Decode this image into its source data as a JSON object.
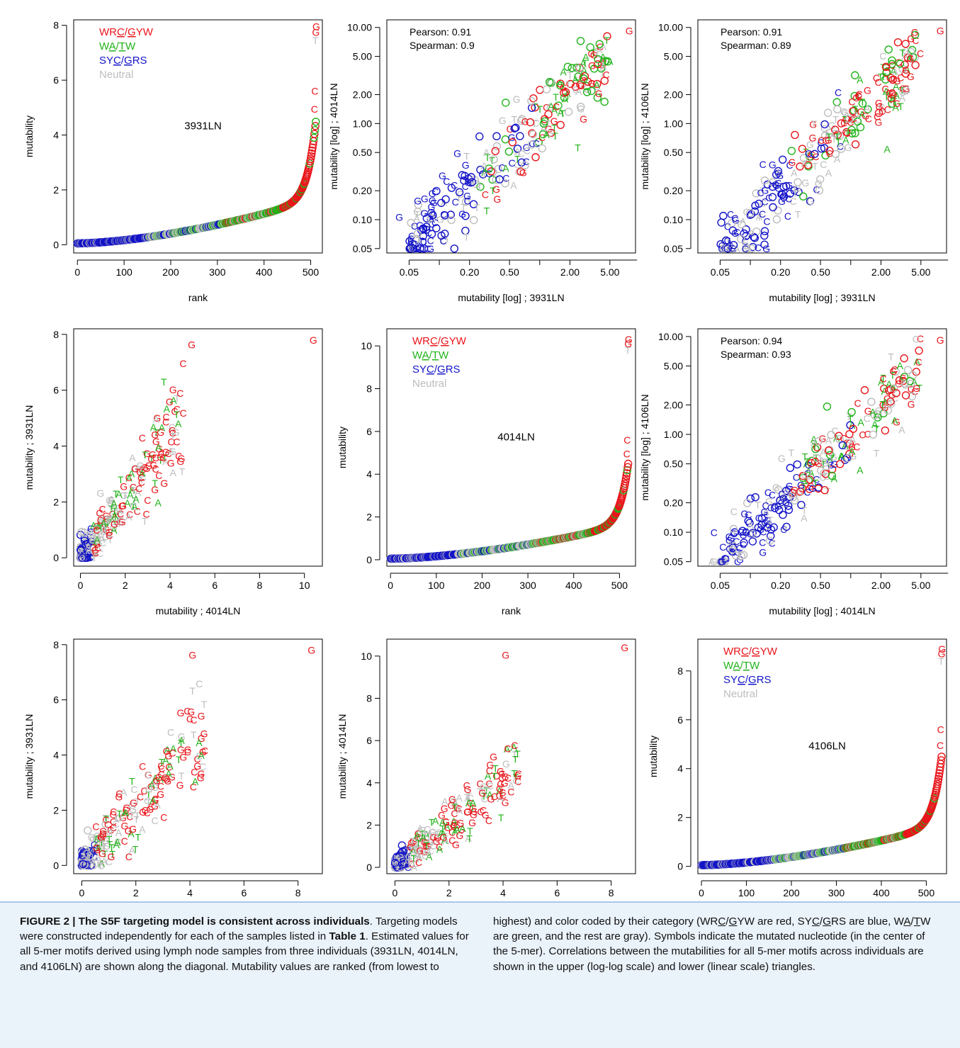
{
  "colors": {
    "red": "#e8161b",
    "green": "#21b31a",
    "blue": "#1414c8",
    "gray": "#bdbdbd"
  },
  "legend": {
    "items": [
      {
        "parts": [
          "WR",
          "C",
          "/",
          "G",
          "YW"
        ],
        "underline": [
          1,
          3
        ],
        "color": "red"
      },
      {
        "parts": [
          "W",
          "A",
          "/",
          "T",
          "W"
        ],
        "underline": [
          1,
          3
        ],
        "color": "green"
      },
      {
        "parts": [
          "SY",
          "C",
          "/",
          "G",
          "RS"
        ],
        "underline": [
          1,
          3
        ],
        "color": "blue"
      },
      {
        "parts": [
          "Neutral"
        ],
        "underline": [],
        "color": "gray"
      }
    ]
  },
  "chart_data": [
    {
      "id": "r1c1",
      "type": "scatter",
      "kind": "rank",
      "sample": "3931LN",
      "n": 512,
      "maxv": 7.95,
      "xlabel": "rank",
      "ylabel": "mutability",
      "x_ticks": [
        0,
        100,
        200,
        300,
        400,
        500
      ],
      "y_ticks": [
        0,
        2,
        4,
        6,
        8
      ],
      "xlim": [
        -8,
        525
      ],
      "ylim": [
        -0.3,
        8.2
      ],
      "legend": true
    },
    {
      "id": "r1c2",
      "type": "scatter",
      "kind": "log",
      "xlabel": "mutability [log] ; 3931LN",
      "ylabel": "mutability [log] ; 4014LN",
      "pearson": "Pearson: 0.91",
      "spearman": "Spearman: 0.9",
      "x_ticks": [
        0.05,
        0.2,
        0.5,
        2,
        5
      ],
      "y_ticks": [
        0.05,
        0.1,
        0.2,
        0.5,
        1,
        2,
        5,
        10
      ],
      "xlim": [
        0.03,
        9
      ],
      "ylim": [
        0.045,
        12
      ],
      "scatter": 0.42
    },
    {
      "id": "r1c3",
      "type": "scatter",
      "kind": "log",
      "xlabel": "mutability [log] ; 3931LN",
      "ylabel": "mutability [log] ; 4106LN",
      "pearson": "Pearson: 0.91",
      "spearman": "Spearman: 0.89",
      "x_ticks": [
        0.05,
        0.2,
        0.5,
        2,
        5
      ],
      "y_ticks": [
        0.05,
        0.1,
        0.2,
        0.5,
        1,
        2,
        5,
        10
      ],
      "xlim": [
        0.03,
        9
      ],
      "ylim": [
        0.045,
        12
      ],
      "scatter": 0.42
    },
    {
      "id": "r2c1",
      "type": "scatter",
      "kind": "lin",
      "xlabel": "mutability ; 4014LN",
      "ylabel": "mutability ; 3931LN",
      "x_ticks": [
        0,
        2,
        4,
        6,
        8,
        10
      ],
      "y_ticks": [
        0,
        2,
        4,
        6,
        8
      ],
      "xlim": [
        -0.3,
        10.8
      ],
      "ylim": [
        -0.3,
        8.2
      ]
    },
    {
      "id": "r2c2",
      "type": "scatter",
      "kind": "rank",
      "sample": "4014LN",
      "n": 520,
      "maxv": 10.3,
      "xlabel": "rank",
      "ylabel": "mutability",
      "x_ticks": [
        0,
        100,
        200,
        300,
        400,
        500
      ],
      "y_ticks": [
        0,
        2,
        4,
        6,
        8,
        10
      ],
      "xlim": [
        -8,
        535
      ],
      "ylim": [
        -0.3,
        10.8
      ],
      "legend": true
    },
    {
      "id": "r2c3",
      "type": "scatter",
      "kind": "log",
      "xlabel": "mutability [log] ; 4014LN",
      "ylabel": "mutability [log] ; 4106LN",
      "pearson": "Pearson: 0.94",
      "spearman": "Spearman: 0.93",
      "x_ticks": [
        0.05,
        0.2,
        0.5,
        2,
        5
      ],
      "y_ticks": [
        0.05,
        0.1,
        0.2,
        0.5,
        1,
        2,
        5,
        10
      ],
      "xlim": [
        0.03,
        9
      ],
      "ylim": [
        0.045,
        12
      ],
      "scatter": 0.35
    },
    {
      "id": "r3c1",
      "type": "scatter",
      "kind": "lin",
      "xlabel": "mutability ; 4106LN",
      "ylabel": "mutability ; 3931LN",
      "x_ticks": [
        0,
        2,
        4,
        6,
        8
      ],
      "y_ticks": [
        0,
        2,
        4,
        6,
        8
      ],
      "xlim": [
        -0.3,
        8.9
      ],
      "ylim": [
        -0.3,
        8.2
      ]
    },
    {
      "id": "r3c2",
      "type": "scatter",
      "kind": "lin",
      "xlabel": "mutability ; 4106LN",
      "ylabel": "mutability ; 4014LN",
      "x_ticks": [
        0,
        2,
        4,
        6,
        8
      ],
      "y_ticks": [
        0,
        2,
        4,
        6,
        8,
        10
      ],
      "xlim": [
        -0.3,
        8.9
      ],
      "ylim": [
        -0.3,
        10.8
      ]
    },
    {
      "id": "r3c3",
      "type": "scatter",
      "kind": "rank",
      "sample": "4106LN",
      "n": 535,
      "maxv": 8.9,
      "xlabel": "rank",
      "ylabel": "mutability",
      "x_ticks": [
        0,
        100,
        200,
        300,
        400,
        500
      ],
      "y_ticks": [
        0,
        2,
        4,
        6,
        8
      ],
      "xlim": [
        -8,
        545
      ],
      "ylim": [
        -0.3,
        9.3
      ],
      "legend": true
    }
  ],
  "caption": {
    "title": "FIGURE 2 | The S5F targeting model is consistent across individuals",
    "left_text": "Targeting models were constructed independently for each of the samples listed in",
    "table_ref": "Table 1",
    "left_text2": ". Estimated values for all 5-mer motifs derived using lymph node samples from three individuals (3931LN, 4014LN, and 4106LN) are shown along the diagonal. Mutability values are ranked (from lowest to",
    "right_text1": "highest) and color coded by their category (WR",
    "right_text2": "C",
    "right_text3": "/",
    "right_text4": "G",
    "right_text5": "YW are red, SY",
    "right_text6": "C",
    "right_text7": "/",
    "right_text8": "G",
    "right_text9": "RS are blue, W",
    "right_text10": "A",
    "right_text11": "/",
    "right_text12": "T",
    "right_text13": "W are green, and the rest are gray). Symbols indicate the mutated nucleotide (in the center of the 5-mer). Correlations between the mutabilities for all 5-mer motifs across individuals are shown in the upper (log-log scale) and lower (linear scale) triangles."
  }
}
